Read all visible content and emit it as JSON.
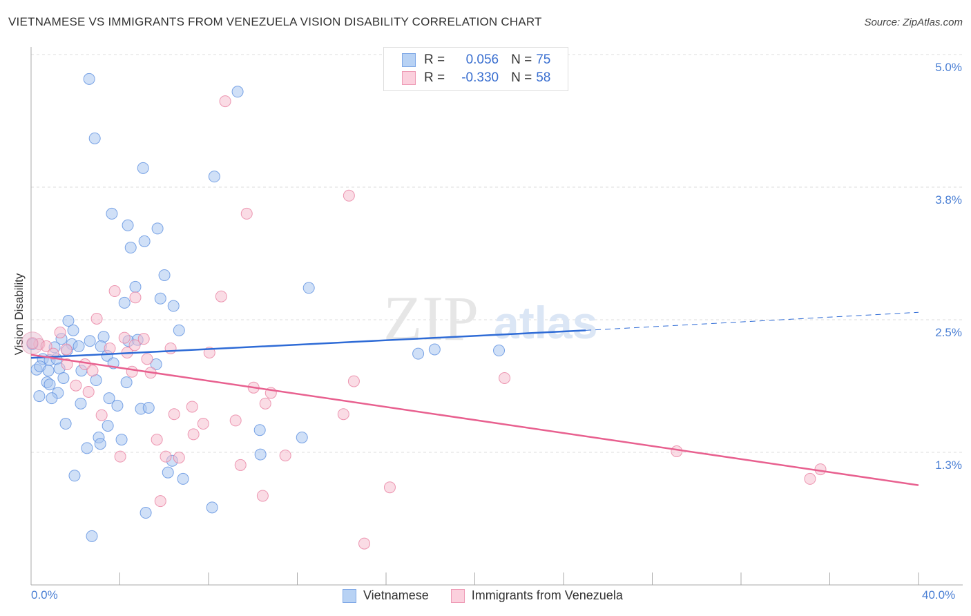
{
  "chart_data": {
    "type": "scatter",
    "title": "VIETNAMESE VS IMMIGRANTS FROM VENEZUELA VISION DISABILITY CORRELATION CHART",
    "source": "Source: ZipAtlas.com",
    "xlabel": "",
    "ylabel": "Vision Disability",
    "xlim": [
      0,
      40
    ],
    "ylim": [
      0,
      5.45
    ],
    "x_tick_labels": [
      "0.0%",
      "40.0%"
    ],
    "y_ticks": [
      1.25,
      2.5,
      3.75,
      5.0
    ],
    "y_tick_labels": [
      "1.3%",
      "2.5%",
      "3.8%",
      "5.0%"
    ],
    "watermark": "ZIPatlas",
    "legend": {
      "rows": [
        {
          "r_label": "R =",
          "r": "0.056",
          "n_label": "N =",
          "n": "75"
        },
        {
          "r_label": "R =",
          "r": "-0.330",
          "n_label": "N =",
          "n": "58"
        }
      ]
    },
    "series": [
      {
        "name": "Vietnamese",
        "color": "#5b8fe0",
        "fill": "#a9c6f0",
        "trend": {
          "x0": 0,
          "y0": 2.14,
          "x1": 25,
          "y1": 2.4,
          "dash_to_x": 40,
          "dash_to_y": 2.57
        },
        "points": [
          [
            2.62,
            4.77
          ],
          [
            2.87,
            4.21
          ],
          [
            5.05,
            3.93
          ],
          [
            9.31,
            4.65
          ],
          [
            8.26,
            3.85
          ],
          [
            3.64,
            3.5
          ],
          [
            4.36,
            3.39
          ],
          [
            5.7,
            3.36
          ],
          [
            5.11,
            3.24
          ],
          [
            4.49,
            3.18
          ],
          [
            6.01,
            2.92
          ],
          [
            4.7,
            2.81
          ],
          [
            5.83,
            2.7
          ],
          [
            4.21,
            2.66
          ],
          [
            6.42,
            2.63
          ],
          [
            12.52,
            2.8
          ],
          [
            1.68,
            2.49
          ],
          [
            1.9,
            2.4
          ],
          [
            6.67,
            2.4
          ],
          [
            1.37,
            2.32
          ],
          [
            2.65,
            2.3
          ],
          [
            3.27,
            2.34
          ],
          [
            4.39,
            2.3
          ],
          [
            4.8,
            2.31
          ],
          [
            1.06,
            2.24
          ],
          [
            1.84,
            2.27
          ],
          [
            2.15,
            2.25
          ],
          [
            3.15,
            2.25
          ],
          [
            1.62,
            2.21
          ],
          [
            3.43,
            2.16
          ],
          [
            0.53,
            2.13
          ],
          [
            0.84,
            2.12
          ],
          [
            1.15,
            2.13
          ],
          [
            3.71,
            2.09
          ],
          [
            5.64,
            2.08
          ],
          [
            0.25,
            2.03
          ],
          [
            0.4,
            2.06
          ],
          [
            0.78,
            2.02
          ],
          [
            1.28,
            2.04
          ],
          [
            2.27,
            2.02
          ],
          [
            1.46,
            1.95
          ],
          [
            2.93,
            1.93
          ],
          [
            0.72,
            1.91
          ],
          [
            4.3,
            1.91
          ],
          [
            0.84,
            1.89
          ],
          [
            1.21,
            1.81
          ],
          [
            0.37,
            1.78
          ],
          [
            0.93,
            1.76
          ],
          [
            3.52,
            1.76
          ],
          [
            2.24,
            1.71
          ],
          [
            3.89,
            1.69
          ],
          [
            4.95,
            1.66
          ],
          [
            5.3,
            1.67
          ],
          [
            1.56,
            1.52
          ],
          [
            3.46,
            1.5
          ],
          [
            10.31,
            1.46
          ],
          [
            3.05,
            1.39
          ],
          [
            4.08,
            1.37
          ],
          [
            12.21,
            1.39
          ],
          [
            3.12,
            1.33
          ],
          [
            2.52,
            1.29
          ],
          [
            6.36,
            1.17
          ],
          [
            10.34,
            1.23
          ],
          [
            6.17,
            1.06
          ],
          [
            6.85,
            1.0
          ],
          [
            1.96,
            1.03
          ],
          [
            5.17,
            0.68
          ],
          [
            8.16,
            0.73
          ],
          [
            2.74,
            0.46
          ],
          [
            17.45,
            2.18
          ],
          [
            18.19,
            2.22
          ],
          [
            21.09,
            2.21
          ],
          [
            0.06,
            2.27
          ]
        ]
      },
      {
        "name": "Immigrants from Venezuela",
        "color": "#e87fa0",
        "fill": "#f6bfd0",
        "trend": {
          "x0": 0,
          "y0": 2.17,
          "x1": 40,
          "y1": 0.94
        },
        "points": [
          [
            8.75,
            4.56
          ],
          [
            14.33,
            3.67
          ],
          [
            9.72,
            3.5
          ],
          [
            3.77,
            2.77
          ],
          [
            4.7,
            2.71
          ],
          [
            8.57,
            2.72
          ],
          [
            2.96,
            2.51
          ],
          [
            1.31,
            2.38
          ],
          [
            4.21,
            2.33
          ],
          [
            5.08,
            2.32
          ],
          [
            0.37,
            2.27
          ],
          [
            0.69,
            2.25
          ],
          [
            0.06,
            2.28
          ],
          [
            4.67,
            2.26
          ],
          [
            1.0,
            2.18
          ],
          [
            1.59,
            2.22
          ],
          [
            3.55,
            2.23
          ],
          [
            4.33,
            2.19
          ],
          [
            6.29,
            2.23
          ],
          [
            8.04,
            2.19
          ],
          [
            5.23,
            2.13
          ],
          [
            2.43,
            2.08
          ],
          [
            1.62,
            2.08
          ],
          [
            2.77,
            2.02
          ],
          [
            4.55,
            2.01
          ],
          [
            5.39,
            2.0
          ],
          [
            14.55,
            1.92
          ],
          [
            21.34,
            1.95
          ],
          [
            2.02,
            1.88
          ],
          [
            10.03,
            1.86
          ],
          [
            10.81,
            1.81
          ],
          [
            2.59,
            1.82
          ],
          [
            10.56,
            1.71
          ],
          [
            7.26,
            1.68
          ],
          [
            3.18,
            1.6
          ],
          [
            6.45,
            1.61
          ],
          [
            14.08,
            1.61
          ],
          [
            7.76,
            1.52
          ],
          [
            9.22,
            1.55
          ],
          [
            7.32,
            1.42
          ],
          [
            5.67,
            1.37
          ],
          [
            4.02,
            1.21
          ],
          [
            6.07,
            1.21
          ],
          [
            6.67,
            1.2
          ],
          [
            11.46,
            1.22
          ],
          [
            9.44,
            1.13
          ],
          [
            29.1,
            1.26
          ],
          [
            35.58,
            1.09
          ],
          [
            35.11,
            1.0
          ],
          [
            5.83,
            0.79
          ],
          [
            10.44,
            0.84
          ],
          [
            16.17,
            0.92
          ],
          [
            15.02,
            0.39
          ]
        ]
      }
    ]
  },
  "colors": {
    "blue": "#3a6fd0",
    "pink": "#e8608f"
  }
}
